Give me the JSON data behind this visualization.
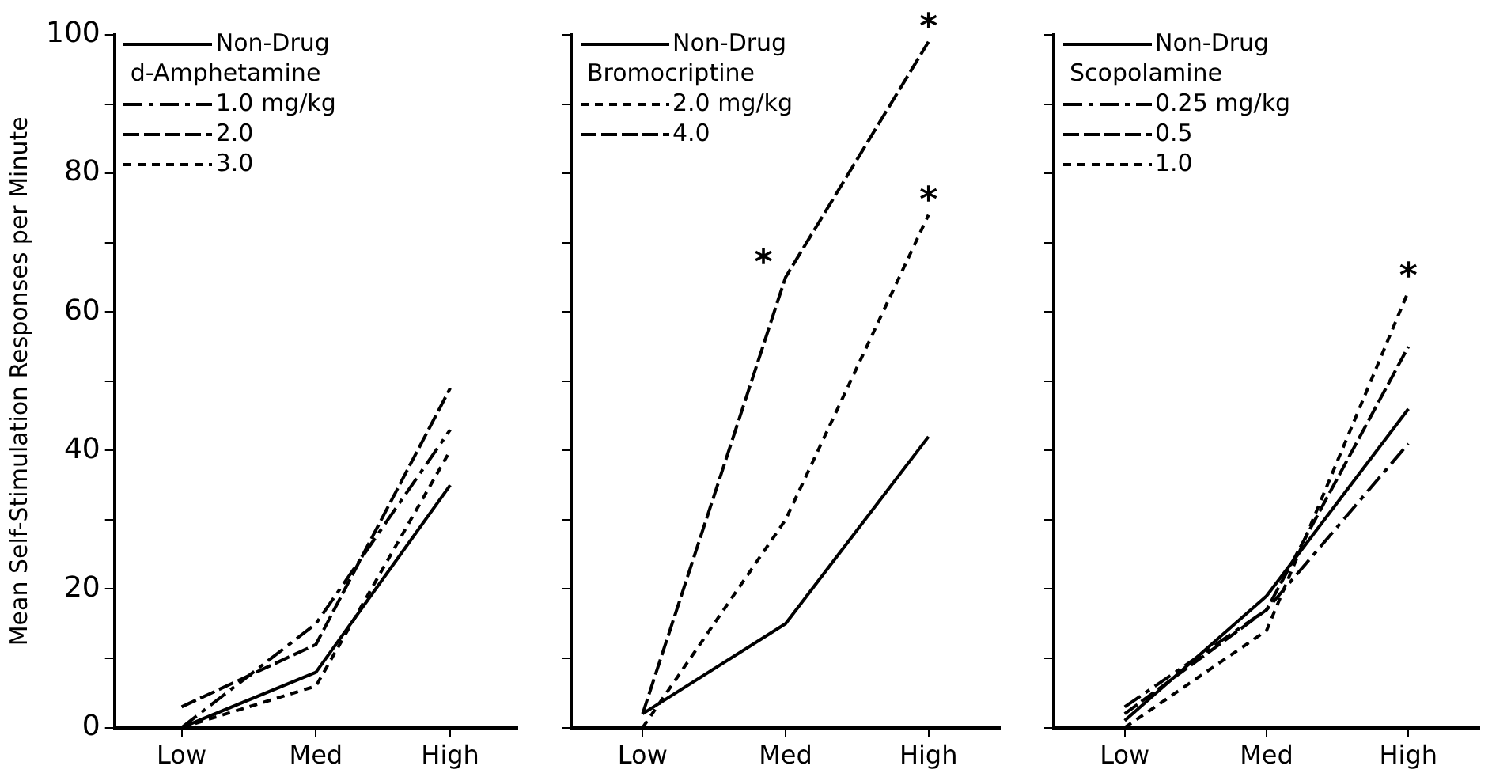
{
  "chart_data": [
    {
      "type": "line",
      "ylabel": "Mean Self-Stimulation Responses per Minute",
      "legend_title": "d-Amphetamine",
      "legend": "top left",
      "marker": "none",
      "grid": false,
      "categories": [
        "Low",
        "Med",
        "High"
      ],
      "ylim": [
        0,
        100
      ],
      "yticks": [
        0,
        {
          "value": 10,
          "label": null
        },
        20,
        {
          "value": 30,
          "label": null
        },
        40,
        {
          "value": 50,
          "label": null
        },
        60,
        {
          "value": 70,
          "label": null
        },
        80,
        {
          "value": 90,
          "label": null
        },
        100
      ],
      "series": [
        {
          "name": "Non-Drug",
          "color": "#000000",
          "line_style": "solid",
          "values": [
            0,
            8,
            35
          ]
        },
        {
          "name": "1.0 mg/kg",
          "color": "#000000",
          "line_style": "dashdot",
          "values": [
            0,
            15,
            43
          ]
        },
        {
          "name": "2.0",
          "color": "#000000",
          "line_style": "dashed",
          "values": [
            3,
            12,
            49
          ]
        },
        {
          "name": "3.0",
          "color": "#000000",
          "line_style": "dotted",
          "values": [
            0,
            6,
            40
          ]
        }
      ]
    },
    {
      "type": "line",
      "legend_title": "Bromocriptine",
      "legend": "top left",
      "marker": "none",
      "grid": false,
      "tick_labels": "x",
      "categories": [
        "Low",
        "Med",
        "High"
      ],
      "ylim": [
        0,
        100
      ],
      "yticks": [
        0,
        {
          "value": 10,
          "label": null
        },
        20,
        {
          "value": 30,
          "label": null
        },
        40,
        {
          "value": 50,
          "label": null
        },
        60,
        {
          "value": 70,
          "label": null
        },
        80,
        {
          "value": 90,
          "label": null
        },
        100
      ],
      "series": [
        {
          "name": "Non-Drug",
          "color": "#000000",
          "line_style": "solid",
          "values": [
            2,
            15,
            42
          ]
        },
        {
          "name": "2.0 mg/kg",
          "color": "#000000",
          "line_style": "dotted",
          "values": [
            0,
            30,
            74
          ]
        },
        {
          "name": "4.0",
          "color": "#000000",
          "line_style": "dashed",
          "values": [
            2,
            65,
            99
          ]
        }
      ],
      "annotations": [
        {
          "text": "*",
          "x": "Med",
          "y": 65
        },
        {
          "text": "*",
          "x": "High",
          "y": 99
        },
        {
          "text": "*",
          "x": "High",
          "y": 74
        }
      ]
    },
    {
      "type": "line",
      "legend_title": "Scopolamine",
      "legend": "top left",
      "marker": "none",
      "grid": false,
      "tick_labels": "x",
      "categories": [
        "Low",
        "Med",
        "High"
      ],
      "ylim": [
        0,
        100
      ],
      "yticks": [
        0,
        {
          "value": 10,
          "label": null
        },
        20,
        {
          "value": 30,
          "label": null
        },
        40,
        {
          "value": 50,
          "label": null
        },
        60,
        {
          "value": 70,
          "label": null
        },
        80,
        {
          "value": 90,
          "label": null
        },
        100
      ],
      "series": [
        {
          "name": "Non-Drug",
          "color": "#000000",
          "line_style": "solid",
          "values": [
            1,
            19,
            46
          ]
        },
        {
          "name": "0.25 mg/kg",
          "color": "#000000",
          "line_style": "dashdot",
          "values": [
            3,
            17,
            41
          ]
        },
        {
          "name": "0.5",
          "color": "#000000",
          "line_style": "dashed",
          "values": [
            2,
            17,
            55
          ]
        },
        {
          "name": "1.0",
          "color": "#000000",
          "line_style": "dotted",
          "values": [
            0,
            14,
            63
          ]
        }
      ],
      "annotations": [
        {
          "text": "*",
          "x": "High",
          "y": 63
        }
      ]
    }
  ]
}
